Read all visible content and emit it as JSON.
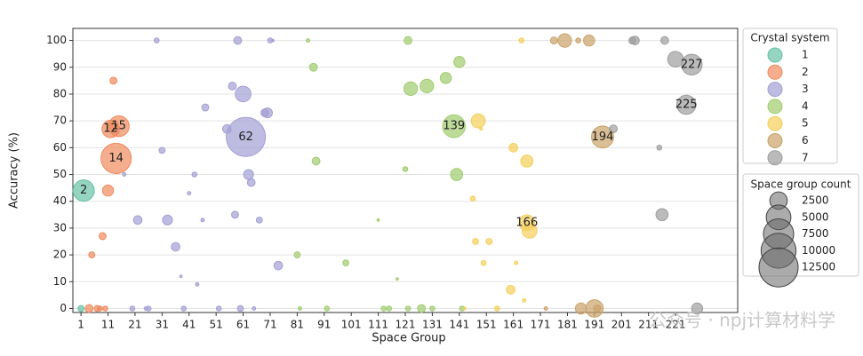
{
  "chart_data": {
    "type": "scatter",
    "xlabel": "Space Group",
    "ylabel": "Accuracy (%)",
    "xlim": [
      -2,
      244
    ],
    "ylim": [
      -1.5,
      104.5
    ],
    "xticks": [
      1,
      11,
      21,
      31,
      41,
      51,
      61,
      71,
      81,
      91,
      101,
      111,
      121,
      131,
      141,
      151,
      161,
      171,
      181,
      191,
      201,
      211,
      221
    ],
    "yticks": [
      0,
      10,
      20,
      30,
      40,
      50,
      60,
      70,
      80,
      90,
      100
    ],
    "grid": true,
    "legend_title": "Crystal system",
    "series": [
      {
        "name": "1",
        "color": "#66c2a5",
        "x": [
          1,
          2
        ],
        "values": [
          0,
          44
        ],
        "sizes": [
          300,
          3700
        ]
      },
      {
        "name": "2",
        "color": "#f08a5d",
        "x": [
          4,
          5,
          7,
          8,
          9,
          10,
          11,
          12,
          13,
          14,
          15
        ],
        "values": [
          0,
          20,
          0,
          0,
          27,
          0,
          44,
          67,
          85,
          56,
          68
        ],
        "sizes": [
          500,
          300,
          300,
          200,
          400,
          200,
          1000,
          2500,
          400,
          7500,
          3500
        ]
      },
      {
        "name": "3",
        "color": "#a3a0d4",
        "x": [
          17,
          20,
          22,
          25,
          26,
          29,
          31,
          33,
          36,
          38,
          39,
          41,
          43,
          44,
          46,
          47,
          52,
          55,
          57,
          58,
          59,
          60,
          61,
          62,
          63,
          64,
          65,
          67,
          69,
          70,
          71,
          72,
          74
        ],
        "values": [
          50,
          0,
          33,
          0,
          0,
          100,
          59,
          33,
          23,
          12,
          0,
          43,
          50,
          9,
          33,
          75,
          0,
          67,
          83,
          35,
          100,
          0,
          80,
          64,
          50,
          47,
          0,
          33,
          73,
          73,
          100,
          100,
          16
        ],
        "sizes": [
          100,
          200,
          600,
          100,
          200,
          200,
          300,
          800,
          600,
          50,
          200,
          100,
          200,
          100,
          100,
          400,
          200,
          600,
          500,
          400,
          500,
          300,
          2000,
          12500,
          800,
          500,
          100,
          300,
          500,
          800,
          200,
          50,
          600
        ]
      },
      {
        "name": "4",
        "color": "#9fcc6e",
        "x": [
          81,
          82,
          85,
          87,
          88,
          92,
          99,
          111,
          113,
          115,
          118,
          121,
          122,
          122,
          123,
          127,
          129,
          131,
          136,
          139,
          140,
          141,
          142
        ],
        "values": [
          20,
          0,
          100,
          90,
          55,
          0,
          17,
          33,
          0,
          0,
          11,
          52,
          100,
          0,
          82,
          0,
          83,
          0,
          86,
          68,
          50,
          92,
          0
        ],
        "sizes": [
          300,
          100,
          100,
          500,
          500,
          200,
          300,
          50,
          200,
          200,
          50,
          200,
          500,
          200,
          1500,
          500,
          1500,
          200,
          1000,
          4200,
          1200,
          1000,
          200
        ]
      },
      {
        "name": "5",
        "color": "#f5cf5a",
        "x": [
          143,
          146,
          147,
          148,
          149,
          150,
          152,
          155,
          160,
          161,
          162,
          164,
          165,
          166,
          166,
          167
        ],
        "values": [
          0,
          41,
          25,
          70,
          67,
          17,
          25,
          0,
          7,
          60,
          17,
          100,
          3,
          55,
          32,
          29
        ],
        "sizes": [
          50,
          200,
          300,
          1600,
          50,
          200,
          300,
          200,
          600,
          600,
          100,
          200,
          100,
          1200,
          2000,
          1800
        ]
      },
      {
        "name": "6",
        "color": "#c9a26a",
        "x": [
          173,
          176,
          180,
          185,
          186,
          189,
          191,
          192,
          194
        ],
        "values": [
          0,
          100,
          100,
          100,
          0,
          100,
          0,
          0,
          64
        ],
        "sizes": [
          100,
          400,
          1500,
          200,
          1000,
          1000,
          2500,
          400,
          4000
        ]
      },
      {
        "name": "7",
        "color": "#9e9e9e",
        "x": [
          198,
          205,
          206,
          215,
          216,
          217,
          221,
          225,
          227,
          229
        ],
        "values": [
          67,
          100,
          100,
          60,
          35,
          100,
          93,
          76,
          91,
          0
        ],
        "sizes": [
          500,
          400,
          600,
          200,
          1200,
          500,
          2000,
          3000,
          3500,
          1000
        ]
      }
    ],
    "annotations": [
      {
        "label": 2,
        "x": 2,
        "y": 44
      },
      {
        "label": 12,
        "x": 12,
        "y": 67
      },
      {
        "label": 15,
        "x": 15,
        "y": 68
      },
      {
        "label": 14,
        "x": 14,
        "y": 56
      },
      {
        "label": 62,
        "x": 62,
        "y": 64
      },
      {
        "label": 139,
        "x": 139,
        "y": 68
      },
      {
        "label": 166,
        "x": 166,
        "y": 32
      },
      {
        "label": 194,
        "x": 194,
        "y": 64
      },
      {
        "label": 225,
        "x": 225,
        "y": 76
      },
      {
        "label": 227,
        "x": 227,
        "y": 91
      }
    ],
    "size_legend": {
      "title": "Space group count",
      "values": [
        2500,
        5000,
        7500,
        10000,
        12500
      ]
    }
  },
  "watermark": "公众号 · npj计算材料学"
}
